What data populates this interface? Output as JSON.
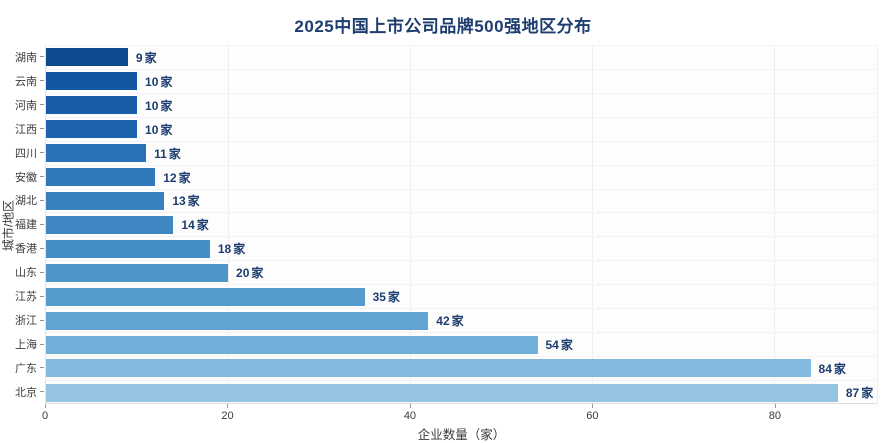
{
  "title": "2025中国上市公司品牌500强地区分布",
  "colors": {
    "title_text": "#1c3d6e",
    "value_label_text": "#1c3d6e",
    "axis_text": "#3a3a3a",
    "grid_dotted": "#dedede",
    "plot_background": "#fdfdfd"
  },
  "chart_data": {
    "type": "bar",
    "orientation": "horizontal",
    "title": "2025中国上市公司品牌500强地区分布",
    "xlabel": "企业数量（家）",
    "ylabel": "城市/地区",
    "categories": [
      "湖南",
      "云南",
      "河南",
      "江西",
      "四川",
      "安徽",
      "湖北",
      "福建",
      "香港",
      "山东",
      "江苏",
      "浙江",
      "上海",
      "广东",
      "北京"
    ],
    "values": [
      9,
      10,
      10,
      10,
      11,
      12,
      13,
      14,
      18,
      20,
      35,
      42,
      54,
      84,
      87
    ],
    "value_labels": [
      "9家",
      "10家",
      "10家",
      "10家",
      "11家",
      "12家",
      "13家",
      "14家",
      "18家",
      "20家",
      "35家",
      "42家",
      "54家",
      "84家",
      "87家"
    ],
    "unit": "家",
    "bar_colors": [
      "#0d4a90",
      "#1356a1",
      "#185ca7",
      "#1d63ad",
      "#2a72b6",
      "#3079ba",
      "#3881bf",
      "#3f87c3",
      "#458fc7",
      "#4e96ca",
      "#549ccd",
      "#5fa4d2",
      "#6fafd8",
      "#83b9dd",
      "#94c4e2"
    ],
    "xlim": [
      0,
      91.3
    ],
    "xticks": [
      0,
      20,
      40,
      60,
      80
    ],
    "grid": "vertical-dotted",
    "legend": "none"
  }
}
